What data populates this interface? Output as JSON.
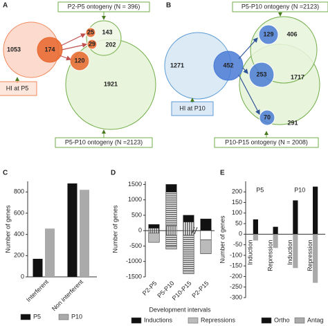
{
  "chart_data": [
    {
      "type": "venn",
      "panel": "A",
      "sets": [
        {
          "label": "P2-P5 ontogeny (N = 396)",
          "color": "#70ad47"
        },
        {
          "label": "HI at P5",
          "color": "#f08a5d"
        },
        {
          "label": "P5-P10 ontogeny (N =2123)",
          "color": "#70ad47"
        }
      ],
      "regions": [
        1053,
        174,
        25,
        29,
        120,
        143,
        202,
        1921
      ]
    },
    {
      "type": "venn",
      "panel": "B",
      "sets": [
        {
          "label": "P5-P10 ontogeny (N =2123)",
          "color": "#70ad47"
        },
        {
          "label": "HI at P10",
          "color": "#5b9bd5"
        },
        {
          "label": "P10-P15 ontogeny (N = 2008)",
          "color": "#70ad47"
        }
      ],
      "regions": [
        1271,
        452,
        129,
        253,
        70,
        406,
        1717,
        291
      ]
    },
    {
      "type": "bar",
      "panel": "C",
      "ylabel": "Number of genes",
      "categories": [
        "Interferent",
        "Non interferent"
      ],
      "series": [
        {
          "name": "P5",
          "color": "#111111",
          "values": [
            170,
            880
          ]
        },
        {
          "name": "P10",
          "color": "#aaaaaa",
          "values": [
            455,
            820
          ]
        }
      ],
      "ylim": [
        0,
        900
      ],
      "yticks": [
        0,
        200,
        400,
        600,
        800
      ]
    },
    {
      "type": "stacked",
      "panel": "D",
      "ylabel": "Number of genes",
      "xlabel": "Development intervals",
      "categories": [
        "P2-P5",
        "P5-P10",
        "P10-P15",
        "P2-P15"
      ],
      "series": [
        {
          "color": "#ffffff",
          "pattern": "vlines",
          "values": [
            80,
            150,
            280,
            0
          ]
        },
        {
          "color": "#ffffff",
          "pattern": "hlines",
          "values": [
            0,
            1100,
            0,
            0
          ]
        },
        {
          "name": "Inductions",
          "color": "#111111",
          "values": [
            120,
            250,
            220,
            380
          ]
        },
        {
          "color": "#ffffff",
          "values": [
            0,
            0,
            0,
            -300
          ]
        },
        {
          "color": "#ffffff",
          "pattern": "vlines",
          "values": [
            -80,
            -150,
            -150,
            0
          ]
        },
        {
          "color": "#ffffff",
          "pattern": "hlines",
          "values": [
            0,
            -350,
            -1150,
            0
          ]
        },
        {
          "name": "Repressions",
          "color": "#bbbbbb",
          "values": [
            -300,
            -100,
            -100,
            -450
          ]
        }
      ],
      "ylim": [
        -1500,
        1600
      ],
      "yticks": [
        -1500,
        -1000,
        -500,
        0,
        500,
        1000,
        1500
      ]
    },
    {
      "type": "bar",
      "panel": "E",
      "ylabel": "Number of genes",
      "group_labels": [
        "P5",
        "P10"
      ],
      "categories": [
        "Induction",
        "Repression",
        "Induction",
        "Repression"
      ],
      "series": [
        {
          "name": "Ortho",
          "color": "#111111",
          "values": [
            70,
            35,
            160,
            225
          ]
        },
        {
          "name": "Antag",
          "color": "#aaaaaa",
          "values": [
            -30,
            -65,
            -160,
            -230
          ]
        }
      ],
      "ylim": [
        -300,
        250
      ],
      "yticks": [
        -300,
        -250,
        -200,
        -150,
        -100,
        -50,
        0,
        50,
        100,
        150,
        200
      ]
    }
  ]
}
